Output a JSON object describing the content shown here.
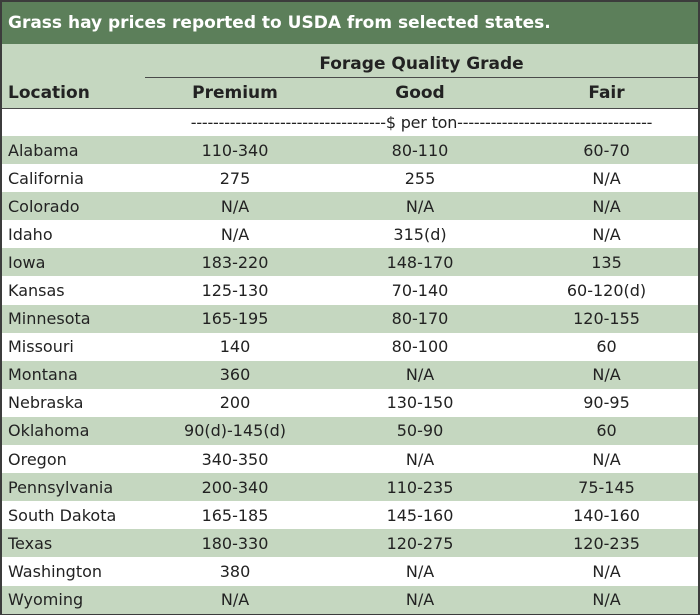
{
  "title": "Grass hay prices reported to USDA from selected states.",
  "header": {
    "group_label": "Forage Quality Grade",
    "location_label": "Location",
    "columns": [
      "Premium",
      "Good",
      "Fair"
    ]
  },
  "unit_line": "-----------------------------------$ per ton-----------------------------------",
  "rows": [
    {
      "location": "Alabama",
      "premium": "110-340",
      "good": "80-110",
      "fair": "60-70"
    },
    {
      "location": "California",
      "premium": "275",
      "good": "255",
      "fair": "N/A"
    },
    {
      "location": "Colorado",
      "premium": "N/A",
      "good": "N/A",
      "fair": "N/A"
    },
    {
      "location": "Idaho",
      "premium": "N/A",
      "good": "315(d)",
      "fair": "N/A"
    },
    {
      "location": "Iowa",
      "premium": "183-220",
      "good": "148-170",
      "fair": "135"
    },
    {
      "location": "Kansas",
      "premium": "125-130",
      "good": "70-140",
      "fair": "60-120(d)"
    },
    {
      "location": "Minnesota",
      "premium": "165-195",
      "good": "80-170",
      "fair": "120-155"
    },
    {
      "location": "Missouri",
      "premium": "140",
      "good": "80-100",
      "fair": "60"
    },
    {
      "location": "Montana",
      "premium": "360",
      "good": "N/A",
      "fair": "N/A"
    },
    {
      "location": "Nebraska",
      "premium": "200",
      "good": "130-150",
      "fair": "90-95"
    },
    {
      "location": "Oklahoma",
      "premium": "90(d)-145(d)",
      "good": "50-90",
      "fair": "60"
    },
    {
      "location": "Oregon",
      "premium": "340-350",
      "good": "N/A",
      "fair": "N/A"
    },
    {
      "location": "Pennsylvania",
      "premium": "200-340",
      "good": "110-235",
      "fair": "75-145"
    },
    {
      "location": "South Dakota",
      "premium": "165-185",
      "good": "145-160",
      "fair": "140-160"
    },
    {
      "location": "Texas",
      "premium": "180-330",
      "good": "120-275",
      "fair": "120-235"
    },
    {
      "location": "Washington",
      "premium": "380",
      "good": "N/A",
      "fair": "N/A"
    },
    {
      "location": "Wyoming",
      "premium": "N/A",
      "good": "N/A",
      "fair": "N/A"
    }
  ]
}
